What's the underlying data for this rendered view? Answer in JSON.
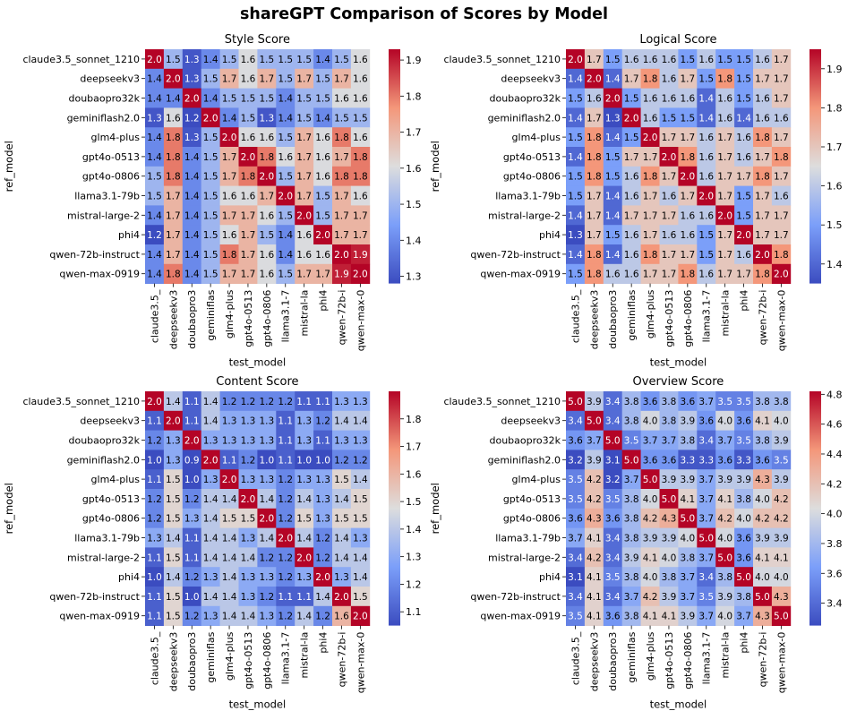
{
  "suptitle": "shareGPT Comparison of Scores by Model",
  "colors": {
    "colormap": "coolwarm",
    "low": "#3b4cc0",
    "mid": "#dddddd",
    "high": "#b40426"
  },
  "chart_data": [
    {
      "type": "heatmap",
      "title": "Style Score",
      "xlabel": "test_model",
      "ylabel": "ref_model",
      "row_labels": [
        "claude3.5_sonnet_1210",
        "deepseekv3",
        "doubaopro32k",
        "geminiflash2.0",
        "glm4-plus",
        "gpt4o-0513",
        "gpt4o-0806",
        "llama3.1-79b",
        "mistral-large-2",
        "phi4",
        "qwen-72b-instruct",
        "qwen-max-0919"
      ],
      "col_labels": [
        "claude3.5_",
        "deepseekv3",
        "doubaopro3",
        "geminiflas",
        "glm4-plus",
        "gpt4o-0513",
        "gpt4o-0806",
        "llama3.1-7",
        "mistral-la",
        "phi4",
        "qwen-72b-i",
        "qwen-max-0"
      ],
      "values": [
        [
          2.0,
          1.5,
          1.3,
          1.4,
          1.5,
          1.6,
          1.5,
          1.5,
          1.5,
          1.4,
          1.5,
          1.6
        ],
        [
          1.4,
          2.0,
          1.3,
          1.5,
          1.7,
          1.6,
          1.7,
          1.5,
          1.7,
          1.5,
          1.7,
          1.6
        ],
        [
          1.4,
          1.4,
          2.0,
          1.4,
          1.5,
          1.5,
          1.5,
          1.4,
          1.5,
          1.5,
          1.6,
          1.6
        ],
        [
          1.3,
          1.6,
          1.2,
          2.0,
          1.4,
          1.5,
          1.3,
          1.4,
          1.5,
          1.4,
          1.5,
          1.5
        ],
        [
          1.4,
          1.8,
          1.3,
          1.5,
          2.0,
          1.6,
          1.6,
          1.5,
          1.7,
          1.6,
          1.8,
          1.6
        ],
        [
          1.4,
          1.8,
          1.4,
          1.5,
          1.7,
          2.0,
          1.8,
          1.6,
          1.7,
          1.6,
          1.7,
          1.8
        ],
        [
          1.5,
          1.8,
          1.4,
          1.5,
          1.7,
          1.8,
          2.0,
          1.5,
          1.7,
          1.6,
          1.8,
          1.8
        ],
        [
          1.5,
          1.7,
          1.4,
          1.5,
          1.6,
          1.6,
          1.7,
          2.0,
          1.7,
          1.5,
          1.7,
          1.6
        ],
        [
          1.4,
          1.7,
          1.4,
          1.5,
          1.7,
          1.7,
          1.6,
          1.5,
          2.0,
          1.5,
          1.7,
          1.7
        ],
        [
          1.2,
          1.7,
          1.4,
          1.5,
          1.6,
          1.7,
          1.5,
          1.4,
          1.6,
          2.0,
          1.7,
          1.7
        ],
        [
          1.4,
          1.7,
          1.4,
          1.5,
          1.8,
          1.7,
          1.6,
          1.4,
          1.6,
          1.6,
          2.0,
          1.9
        ],
        [
          1.4,
          1.8,
          1.4,
          1.5,
          1.7,
          1.7,
          1.6,
          1.5,
          1.7,
          1.7,
          1.9,
          2.0
        ]
      ],
      "vmin": 1.28,
      "vmax": 1.93,
      "colorbar_ticks": [
        1.3,
        1.4,
        1.5,
        1.6,
        1.7,
        1.8,
        1.9
      ]
    },
    {
      "type": "heatmap",
      "title": "Logical Score",
      "xlabel": "test_model",
      "ylabel": "ref_model",
      "row_labels": [
        "claude3.5_sonnet_1210",
        "deepseekv3",
        "doubaopro32k",
        "geminiflash2.0",
        "glm4-plus",
        "gpt4o-0513",
        "gpt4o-0806",
        "llama3.1-79b",
        "mistral-large-2",
        "phi4",
        "qwen-72b-instruct",
        "qwen-max-0919"
      ],
      "col_labels": [
        "claude3.5_",
        "deepseekv3",
        "doubaopro3",
        "geminiflas",
        "glm4-plus",
        "gpt4o-0513",
        "gpt4o-0806",
        "llama3.1-7",
        "mistral-la",
        "phi4",
        "qwen-72b-i",
        "qwen-max-0"
      ],
      "values": [
        [
          2.0,
          1.7,
          1.5,
          1.6,
          1.6,
          1.6,
          1.5,
          1.6,
          1.5,
          1.5,
          1.6,
          1.7
        ],
        [
          1.4,
          2.0,
          1.4,
          1.7,
          1.8,
          1.6,
          1.7,
          1.5,
          1.8,
          1.5,
          1.7,
          1.7
        ],
        [
          1.5,
          1.6,
          2.0,
          1.5,
          1.6,
          1.6,
          1.6,
          1.4,
          1.6,
          1.5,
          1.6,
          1.7
        ],
        [
          1.4,
          1.7,
          1.3,
          2.0,
          1.6,
          1.5,
          1.5,
          1.4,
          1.6,
          1.4,
          1.6,
          1.6
        ],
        [
          1.5,
          1.8,
          1.4,
          1.5,
          2.0,
          1.7,
          1.7,
          1.6,
          1.7,
          1.6,
          1.8,
          1.7
        ],
        [
          1.4,
          1.8,
          1.5,
          1.7,
          1.7,
          2.0,
          1.8,
          1.6,
          1.7,
          1.6,
          1.7,
          1.8
        ],
        [
          1.5,
          1.8,
          1.5,
          1.6,
          1.8,
          1.7,
          2.0,
          1.6,
          1.7,
          1.7,
          1.8,
          1.7
        ],
        [
          1.5,
          1.7,
          1.4,
          1.6,
          1.7,
          1.6,
          1.7,
          2.0,
          1.7,
          1.5,
          1.7,
          1.6
        ],
        [
          1.4,
          1.7,
          1.4,
          1.7,
          1.7,
          1.7,
          1.6,
          1.6,
          2.0,
          1.5,
          1.7,
          1.7
        ],
        [
          1.3,
          1.7,
          1.5,
          1.6,
          1.7,
          1.6,
          1.6,
          1.5,
          1.7,
          2.0,
          1.7,
          1.7
        ],
        [
          1.4,
          1.8,
          1.4,
          1.6,
          1.8,
          1.7,
          1.7,
          1.5,
          1.7,
          1.6,
          2.0,
          1.8
        ],
        [
          1.5,
          1.8,
          1.6,
          1.6,
          1.7,
          1.7,
          1.8,
          1.6,
          1.7,
          1.7,
          1.8,
          2.0
        ]
      ],
      "vmin": 1.35,
      "vmax": 1.95,
      "colorbar_ticks": [
        1.4,
        1.5,
        1.6,
        1.7,
        1.8,
        1.9
      ]
    },
    {
      "type": "heatmap",
      "title": "Content Score",
      "xlabel": "test_model",
      "ylabel": "ref_model",
      "row_labels": [
        "claude3.5_sonnet_1210",
        "deepseekv3",
        "doubaopro32k",
        "geminiflash2.0",
        "glm4-plus",
        "gpt4o-0513",
        "gpt4o-0806",
        "llama3.1-79b",
        "mistral-large-2",
        "phi4",
        "qwen-72b-instruct",
        "qwen-max-0919"
      ],
      "col_labels": [
        "claude3.5_",
        "deepseekv3",
        "doubaopro3",
        "geminiflas",
        "glm4-plus",
        "gpt4o-0513",
        "gpt4o-0806",
        "llama3.1-7",
        "mistral-la",
        "phi4",
        "qwen-72b-i",
        "qwen-max-0"
      ],
      "values": [
        [
          2.0,
          1.4,
          1.1,
          1.4,
          1.2,
          1.2,
          1.2,
          1.2,
          1.1,
          1.1,
          1.3,
          1.3
        ],
        [
          1.1,
          2.0,
          1.1,
          1.4,
          1.3,
          1.3,
          1.3,
          1.1,
          1.3,
          1.2,
          1.4,
          1.4
        ],
        [
          1.2,
          1.3,
          2.0,
          1.3,
          1.3,
          1.3,
          1.3,
          1.1,
          1.3,
          1.1,
          1.3,
          1.3
        ],
        [
          1.0,
          1.3,
          0.9,
          2.0,
          1.1,
          1.2,
          1.0,
          1.1,
          1.0,
          1.0,
          1.2,
          1.2
        ],
        [
          1.1,
          1.5,
          1.0,
          1.3,
          2.0,
          1.3,
          1.3,
          1.2,
          1.3,
          1.3,
          1.5,
          1.4
        ],
        [
          1.2,
          1.5,
          1.2,
          1.4,
          1.4,
          2.0,
          1.4,
          1.2,
          1.4,
          1.3,
          1.4,
          1.5
        ],
        [
          1.2,
          1.5,
          1.3,
          1.4,
          1.5,
          1.5,
          2.0,
          1.2,
          1.5,
          1.3,
          1.5,
          1.5
        ],
        [
          1.3,
          1.4,
          1.1,
          1.4,
          1.4,
          1.3,
          1.4,
          2.0,
          1.4,
          1.2,
          1.4,
          1.3
        ],
        [
          1.1,
          1.5,
          1.1,
          1.4,
          1.4,
          1.4,
          1.2,
          1.2,
          2.0,
          1.2,
          1.4,
          1.4
        ],
        [
          1.0,
          1.4,
          1.2,
          1.3,
          1.4,
          1.3,
          1.3,
          1.2,
          1.3,
          2.0,
          1.3,
          1.4
        ],
        [
          1.1,
          1.5,
          1.0,
          1.4,
          1.4,
          1.3,
          1.2,
          1.1,
          1.1,
          1.4,
          2.0,
          1.5
        ],
        [
          1.1,
          1.5,
          1.2,
          1.3,
          1.4,
          1.4,
          1.3,
          1.2,
          1.4,
          1.2,
          1.6,
          2.0
        ]
      ],
      "vmin": 1.05,
      "vmax": 1.9,
      "colorbar_ticks": [
        1.1,
        1.2,
        1.3,
        1.4,
        1.5,
        1.6,
        1.7,
        1.8
      ]
    },
    {
      "type": "heatmap",
      "title": "Overview Score",
      "xlabel": "test_model",
      "ylabel": "ref_model",
      "row_labels": [
        "claude3.5_sonnet_1210",
        "deepseekv3",
        "doubaopro32k",
        "geminiflash2.0",
        "glm4-plus",
        "gpt4o-0513",
        "gpt4o-0806",
        "llama3.1-79b",
        "mistral-large-2",
        "phi4",
        "qwen-72b-instruct",
        "qwen-max-0919"
      ],
      "col_labels": [
        "claude3.5_",
        "deepseekv3",
        "doubaopro3",
        "geminiflas",
        "glm4-plus",
        "gpt4o-0513",
        "gpt4o-0806",
        "llama3.1-7",
        "mistral-la",
        "phi4",
        "qwen-72b-i",
        "qwen-max-0"
      ],
      "values": [
        [
          5.0,
          3.9,
          3.4,
          3.8,
          3.6,
          3.8,
          3.6,
          3.7,
          3.5,
          3.5,
          3.8,
          3.8
        ],
        [
          3.4,
          5.0,
          3.4,
          3.8,
          4.0,
          3.8,
          3.9,
          3.6,
          4.0,
          3.6,
          4.1,
          4.0
        ],
        [
          3.6,
          3.7,
          5.0,
          3.5,
          3.7,
          3.7,
          3.8,
          3.4,
          3.7,
          3.5,
          3.8,
          3.9
        ],
        [
          3.2,
          3.9,
          3.1,
          5.0,
          3.6,
          3.6,
          3.3,
          3.3,
          3.6,
          3.3,
          3.6,
          3.5
        ],
        [
          3.5,
          4.2,
          3.2,
          3.7,
          5.0,
          3.9,
          3.9,
          3.7,
          3.9,
          3.9,
          4.3,
          3.9
        ],
        [
          3.5,
          4.2,
          3.5,
          3.8,
          4.0,
          5.0,
          4.1,
          3.7,
          4.1,
          3.8,
          4.0,
          4.2
        ],
        [
          3.6,
          4.3,
          3.6,
          3.8,
          4.2,
          4.3,
          5.0,
          3.7,
          4.2,
          4.0,
          4.2,
          4.2
        ],
        [
          3.7,
          4.1,
          3.4,
          3.8,
          3.9,
          3.9,
          4.0,
          5.0,
          4.0,
          3.6,
          3.9,
          3.9
        ],
        [
          3.4,
          4.2,
          3.4,
          3.9,
          4.1,
          4.0,
          3.8,
          3.7,
          5.0,
          3.6,
          4.1,
          4.1
        ],
        [
          3.1,
          4.1,
          3.5,
          3.8,
          4.0,
          3.8,
          3.7,
          3.4,
          3.8,
          5.0,
          4.0,
          4.0
        ],
        [
          3.4,
          4.1,
          3.4,
          3.7,
          4.2,
          3.9,
          3.7,
          3.5,
          3.9,
          3.8,
          5.0,
          4.3
        ],
        [
          3.5,
          4.1,
          3.6,
          3.8,
          4.1,
          4.1,
          3.9,
          3.7,
          4.0,
          3.7,
          4.3,
          5.0
        ]
      ],
      "vmin": 3.25,
      "vmax": 4.82,
      "colorbar_ticks": [
        3.4,
        3.6,
        3.8,
        4.0,
        4.2,
        4.4,
        4.6,
        4.8
      ]
    }
  ]
}
